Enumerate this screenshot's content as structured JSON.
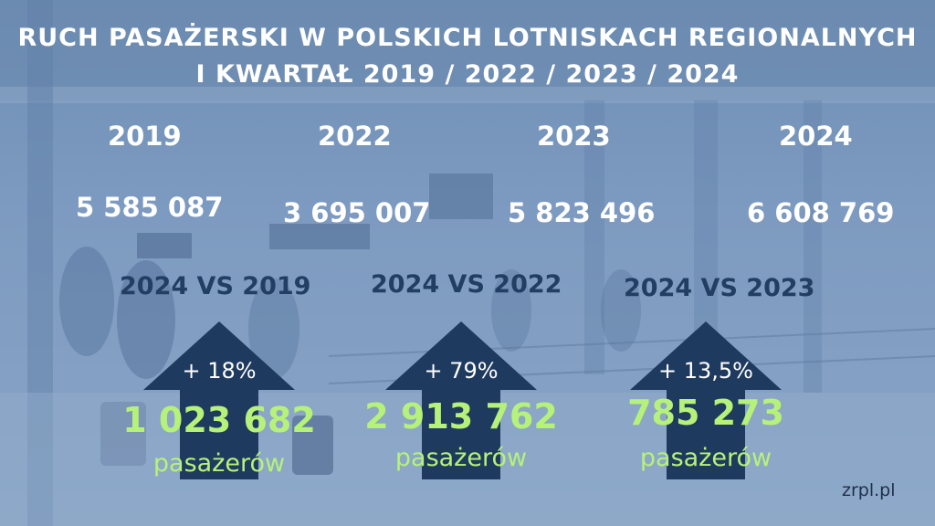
{
  "title": {
    "line1": "RUCH PASAŻERSKI W POLSKICH LOTNISKACH REGIONALNYCH",
    "line2": "I KWARTAŁ 2019 / 2022 / 2023 / 2024"
  },
  "years": [
    {
      "year": "2019",
      "passengers": "5 585 087"
    },
    {
      "year": "2022",
      "passengers": "3 695 007"
    },
    {
      "year": "2023",
      "passengers": "5 823 496"
    },
    {
      "year": "2024",
      "passengers": "6 608 769"
    }
  ],
  "comparisons": [
    {
      "label": "2024 VS 2019",
      "percent": "+ 18%",
      "delta": "1 023 682",
      "unit": "pasażerów"
    },
    {
      "label": "2024 VS 2022",
      "percent": "+ 79%",
      "delta": "2 913 762",
      "unit": "pasażerów"
    },
    {
      "label": "2024 VS 2023",
      "percent": "+ 13,5%",
      "delta": "785 273",
      "unit": "pasażerów"
    }
  ],
  "brand": "zrpl.pl",
  "colors": {
    "overlay": "#7d9ac0",
    "arrow": "#1f3a5f",
    "highlight": "#b6f27a",
    "comparison_label": "#233e63"
  }
}
